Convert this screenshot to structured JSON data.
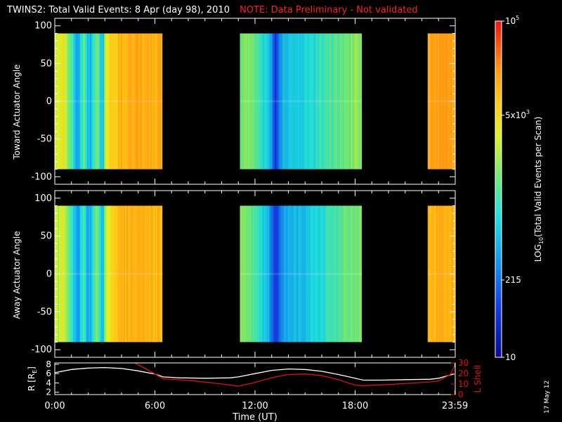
{
  "header": {
    "title": "TWINS2: Total Valid Events:  8 Apr (day  98), 2010",
    "note": "NOTE: Data Preliminary - Not validated"
  },
  "stamp": "17 May 12",
  "colors": {
    "background": "#000000",
    "axes": "#ffffff",
    "note": "#ff2020",
    "r_line": "#ffffff",
    "lshell_line": "#e01010"
  },
  "chart_data": [
    {
      "type": "heatmap",
      "name": "toward-panel",
      "ylabel": "Toward Actuator Angle",
      "xlim": [
        0,
        24
      ],
      "ylim": [
        -110,
        110
      ],
      "yticks": [
        100,
        50,
        0,
        -50,
        -100
      ],
      "ytick_labels": [
        "100",
        "50",
        "0",
        "-50",
        "-100"
      ],
      "angle_range": [
        -90,
        90
      ],
      "data_intervals_hours": [
        [
          0.0,
          6.45
        ],
        [
          11.1,
          18.4
        ],
        [
          22.35,
          24.0
        ]
      ],
      "profile_level": [
        [
          0.0,
          0.68
        ],
        [
          0.2,
          0.62
        ],
        [
          0.5,
          0.7
        ],
        [
          0.8,
          0.55
        ],
        [
          1.0,
          0.5
        ],
        [
          1.2,
          0.36
        ],
        [
          1.35,
          0.3
        ],
        [
          1.5,
          0.42
        ],
        [
          1.7,
          0.52
        ],
        [
          1.9,
          0.38
        ],
        [
          2.1,
          0.33
        ],
        [
          2.3,
          0.48
        ],
        [
          2.5,
          0.58
        ],
        [
          2.7,
          0.4
        ],
        [
          2.85,
          0.36
        ],
        [
          3.0,
          0.62
        ],
        [
          3.3,
          0.74
        ],
        [
          4.0,
          0.8
        ],
        [
          5.0,
          0.82
        ],
        [
          6.45,
          0.8
        ],
        [
          11.1,
          0.55
        ],
        [
          11.5,
          0.57
        ],
        [
          12.0,
          0.5
        ],
        [
          12.4,
          0.44
        ],
        [
          12.8,
          0.38
        ],
        [
          13.0,
          0.26
        ],
        [
          13.2,
          0.15
        ],
        [
          13.4,
          0.25
        ],
        [
          13.7,
          0.36
        ],
        [
          14.2,
          0.38
        ],
        [
          14.8,
          0.4
        ],
        [
          15.5,
          0.43
        ],
        [
          16.2,
          0.47
        ],
        [
          17.0,
          0.52
        ],
        [
          17.8,
          0.56
        ],
        [
          18.4,
          0.58
        ],
        [
          22.35,
          0.83
        ],
        [
          24.0,
          0.84
        ]
      ],
      "colorbar": {
        "label": "LOG10(Total Valid Events per Scan)",
        "label_main": "LOG",
        "label_sub": "10",
        "label_rest": "(Total Valid Events per Scan)",
        "ticks": [
          {
            "main": "10",
            "sup": "5",
            "level": 1.0
          },
          {
            "main": "5x10",
            "sup": "3",
            "level": 0.72
          },
          {
            "main": "215",
            "sup": "",
            "level": 0.23
          },
          {
            "main": "10",
            "sup": "",
            "level": 0.0
          }
        ]
      }
    },
    {
      "type": "heatmap",
      "name": "away-panel",
      "ylabel": "Away Actuator Angle",
      "xlim": [
        0,
        24
      ],
      "ylim": [
        -110,
        110
      ],
      "yticks": [
        100,
        50,
        0,
        -50,
        -100
      ],
      "ytick_labels": [
        "100",
        "50",
        "0",
        "-50",
        "-100"
      ],
      "angle_range": [
        -90,
        90
      ],
      "data_intervals_hours": [
        [
          0.0,
          6.45
        ],
        [
          11.1,
          18.4
        ],
        [
          22.35,
          24.0
        ]
      ],
      "profile_level": [
        [
          0.0,
          0.66
        ],
        [
          0.2,
          0.6
        ],
        [
          0.5,
          0.68
        ],
        [
          0.8,
          0.52
        ],
        [
          1.0,
          0.46
        ],
        [
          1.2,
          0.32
        ],
        [
          1.35,
          0.26
        ],
        [
          1.5,
          0.4
        ],
        [
          1.7,
          0.5
        ],
        [
          1.9,
          0.34
        ],
        [
          2.1,
          0.3
        ],
        [
          2.3,
          0.46
        ],
        [
          2.5,
          0.56
        ],
        [
          2.7,
          0.38
        ],
        [
          2.85,
          0.34
        ],
        [
          3.0,
          0.6
        ],
        [
          3.3,
          0.72
        ],
        [
          4.0,
          0.79
        ],
        [
          5.0,
          0.81
        ],
        [
          6.45,
          0.79
        ],
        [
          11.1,
          0.58
        ],
        [
          11.5,
          0.56
        ],
        [
          12.0,
          0.48
        ],
        [
          12.4,
          0.4
        ],
        [
          12.8,
          0.34
        ],
        [
          13.0,
          0.22
        ],
        [
          13.2,
          0.12
        ],
        [
          13.4,
          0.22
        ],
        [
          13.7,
          0.32
        ],
        [
          14.2,
          0.34
        ],
        [
          14.8,
          0.36
        ],
        [
          15.5,
          0.4
        ],
        [
          16.2,
          0.45
        ],
        [
          17.0,
          0.5
        ],
        [
          17.8,
          0.54
        ],
        [
          18.4,
          0.56
        ],
        [
          22.35,
          0.8
        ],
        [
          24.0,
          0.81
        ]
      ]
    },
    {
      "type": "line",
      "name": "orbit-panel",
      "xlabel": "Time (UT)",
      "xlim": [
        0,
        24
      ],
      "xticks": [
        0,
        6,
        12,
        18,
        23.983
      ],
      "xtick_labels": [
        "0:00",
        "6:00",
        "12:00",
        "18:00",
        "23:59"
      ],
      "ylabel_left": "R [R",
      "ylabel_left_sub": "E",
      "ylabel_left_end": "]",
      "ylim_left": [
        1.5,
        8.3
      ],
      "yticks_left": [
        2,
        4,
        6,
        8
      ],
      "ylabel_right": "L Shell",
      "ylim_right": [
        0,
        30
      ],
      "yticks_right": [
        0,
        10,
        20,
        30
      ],
      "series": [
        {
          "axis": "left",
          "x": [
            0.0,
            1.0,
            2.0,
            3.0,
            4.0,
            5.0,
            6.0,
            6.5,
            7.5,
            9.0,
            10.5,
            11.0,
            12.0,
            13.0,
            14.0,
            15.0,
            16.0,
            17.0,
            18.0,
            18.5,
            19.5,
            21.0,
            22.5,
            23.0,
            24.0
          ],
          "y": [
            6.2,
            6.9,
            7.2,
            7.3,
            7.1,
            6.6,
            5.9,
            5.3,
            5.1,
            5.0,
            5.1,
            5.3,
            6.0,
            6.7,
            7.0,
            6.9,
            6.5,
            5.8,
            5.0,
            4.6,
            4.6,
            4.7,
            4.8,
            5.0,
            6.0
          ]
        },
        {
          "axis": "right",
          "x": [
            4.8,
            5.5,
            6.5,
            8.0,
            9.5,
            11.0,
            12.0,
            13.0,
            14.0,
            15.0,
            16.0,
            17.0,
            18.0,
            18.5,
            20.0,
            21.5,
            22.5,
            23.0,
            23.7,
            24.0
          ],
          "y": [
            30.0,
            24.0,
            15.0,
            13.5,
            11.0,
            8.0,
            11.5,
            16.0,
            19.0,
            19.5,
            18.0,
            14.0,
            9.0,
            8.5,
            9.5,
            11.0,
            12.0,
            13.0,
            19.0,
            28.0
          ]
        }
      ]
    }
  ]
}
